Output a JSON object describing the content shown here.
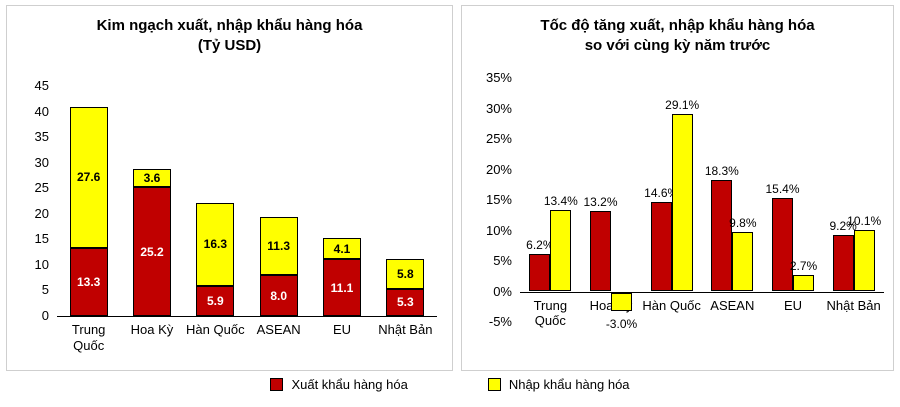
{
  "legend": {
    "export_label": "Xuất khẩu hàng hóa",
    "import_label": "Nhập khẩu hàng hóa",
    "position": "bottom-center"
  },
  "colors": {
    "export": "#C00000",
    "import": "#FFFF00",
    "bar_border": "#000000",
    "panel_border": "#cfcfcf"
  },
  "chart_data": [
    {
      "type": "bar",
      "subtype": "stacked",
      "title": "Kim ngạch xuất, nhập khẩu hàng hóa",
      "subtitle": "(Tỷ USD)",
      "categories": [
        "Trung Quốc",
        "Hoa Kỳ",
        "Hàn Quốc",
        "ASEAN",
        "EU",
        "Nhật Bản"
      ],
      "series": [
        {
          "name": "Xuất khẩu hàng hóa",
          "color": "#C00000",
          "values": [
            13.3,
            25.2,
            5.9,
            8.0,
            11.1,
            5.3
          ]
        },
        {
          "name": "Nhập khẩu hàng hóa",
          "color": "#FFFF00",
          "values": [
            27.6,
            3.6,
            16.3,
            11.3,
            4.1,
            5.8
          ]
        }
      ],
      "ylim": [
        0,
        45
      ],
      "ytick_step": 5,
      "tick_suffix": "",
      "grid": false,
      "data_labels": "inside, one decimal",
      "legend_position": "shared-bottom"
    },
    {
      "type": "bar",
      "subtype": "grouped",
      "title": "Tốc độ tăng xuất, nhập khẩu hàng hóa",
      "subtitle": "so với cùng kỳ năm trước",
      "categories": [
        "Trung Quốc",
        "Hoa Kỳ",
        "Hàn Quốc",
        "ASEAN",
        "EU",
        "Nhật Bản"
      ],
      "series": [
        {
          "name": "Xuất khẩu hàng hóa",
          "color": "#C00000",
          "values": [
            6.2,
            13.2,
            14.6,
            18.3,
            15.4,
            9.2
          ]
        },
        {
          "name": "Nhập khẩu hàng hóa",
          "color": "#FFFF00",
          "values": [
            13.4,
            -3.0,
            29.1,
            9.8,
            2.7,
            10.1
          ]
        }
      ],
      "ylim": [
        -5,
        35
      ],
      "ytick_step": 5,
      "tick_suffix": "%",
      "grid": false,
      "data_labels": "outside end, one decimal, percent",
      "legend_position": "shared-bottom"
    }
  ]
}
